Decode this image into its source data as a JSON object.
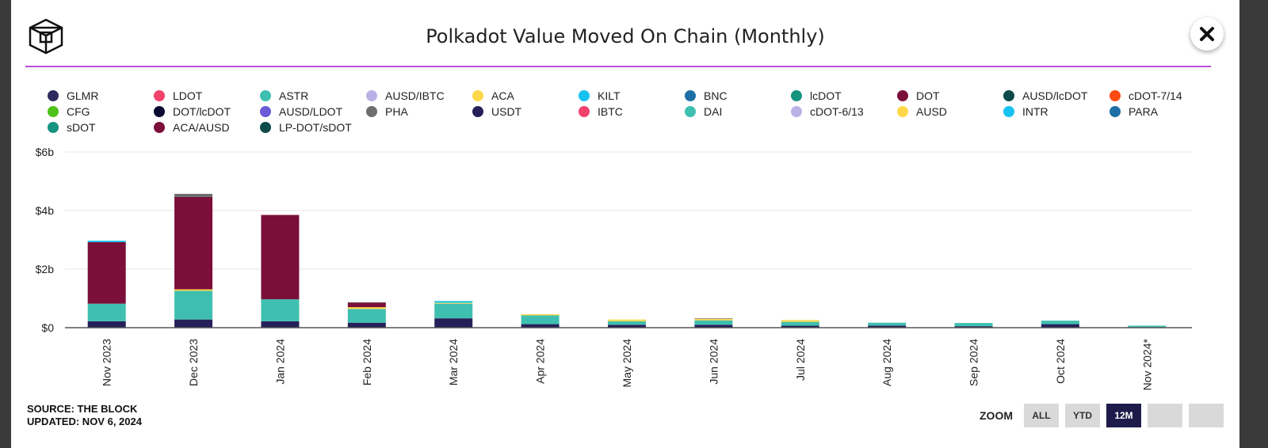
{
  "title": "Polkadot Value Moved On Chain (Monthly)",
  "source_line": "SOURCE: THE BLOCK",
  "updated_line": "UPDATED: NOV 6, 2024",
  "zoom": {
    "label": "ZOOM",
    "buttons": [
      {
        "label": "ALL",
        "active": false
      },
      {
        "label": "YTD",
        "active": false
      },
      {
        "label": "12M",
        "active": true
      },
      {
        "label": "",
        "active": false
      },
      {
        "label": "",
        "active": false
      }
    ]
  },
  "legend": [
    {
      "name": "GLMR",
      "color": "#2e2a5e"
    },
    {
      "name": "LDOT",
      "color": "#f0426a"
    },
    {
      "name": "ASTR",
      "color": "#3fbfb0"
    },
    {
      "name": "AUSD/IBTC",
      "color": "#b9b2e6"
    },
    {
      "name": "ACA",
      "color": "#ffd84a"
    },
    {
      "name": "KILT",
      "color": "#18c2f0"
    },
    {
      "name": "BNC",
      "color": "#1d6fa5"
    },
    {
      "name": "lcDOT",
      "color": "#17947f"
    },
    {
      "name": "DOT",
      "color": "#7b0f3a"
    },
    {
      "name": "AUSD/lcDOT",
      "color": "#0d4a4a"
    },
    {
      "name": "cDOT-7/14",
      "color": "#ff4a14"
    },
    {
      "name": "CFG",
      "color": "#4fc21a"
    },
    {
      "name": "DOT/lcDOT",
      "color": "#0a0a30"
    },
    {
      "name": "AUSD/LDOT",
      "color": "#6b5bd6"
    },
    {
      "name": "PHA",
      "color": "#6e6e6e"
    },
    {
      "name": "USDT",
      "color": "#26205a"
    },
    {
      "name": "IBTC",
      "color": "#f0426a"
    },
    {
      "name": "DAI",
      "color": "#3fbfb0"
    },
    {
      "name": "cDOT-6/13",
      "color": "#b9b2e6"
    },
    {
      "name": "AUSD",
      "color": "#ffd84a"
    },
    {
      "name": "INTR",
      "color": "#18c2f0"
    },
    {
      "name": "PARA",
      "color": "#1d6fa5"
    },
    {
      "name": "sDOT",
      "color": "#17947f"
    },
    {
      "name": "ACA/AUSD",
      "color": "#7b0f3a"
    },
    {
      "name": "LP-DOT/sDOT",
      "color": "#0d4a4a"
    }
  ],
  "chart_data": {
    "type": "bar",
    "stacked": true,
    "ylim": [
      0,
      6
    ],
    "yticks": [
      "$0",
      "$2b",
      "$4b",
      "$6b"
    ],
    "ytick_values": [
      0,
      2,
      4,
      6
    ],
    "unit": "billion USD",
    "grid": true,
    "categories": [
      "Nov 2023",
      "Dec 2023",
      "Jan 2024",
      "Feb 2024",
      "Mar 2024",
      "Apr 2024",
      "May 2024",
      "Jun 2024",
      "Jul 2024",
      "Aug 2024",
      "Sep 2024",
      "Oct 2024",
      "Nov 2024*"
    ],
    "series": [
      {
        "name": "USDT",
        "color": "#26205a",
        "values": [
          0.22,
          0.28,
          0.22,
          0.17,
          0.32,
          0.12,
          0.1,
          0.1,
          0.07,
          0.07,
          0.05,
          0.12,
          0.02
        ]
      },
      {
        "name": "DAI",
        "color": "#3fbfb0",
        "values": [
          0.6,
          0.98,
          0.75,
          0.47,
          0.5,
          0.3,
          0.12,
          0.15,
          0.13,
          0.1,
          0.11,
          0.12,
          0.05
        ]
      },
      {
        "name": "ACA",
        "color": "#ffd84a",
        "values": [
          0,
          0.05,
          0,
          0.06,
          0.03,
          0.04,
          0.06,
          0.05,
          0.06,
          0,
          0,
          0,
          0
        ]
      },
      {
        "name": "DOT",
        "color": "#7b0f3a",
        "values": [
          2.1,
          3.15,
          2.88,
          0.15,
          0,
          0,
          0,
          0,
          0,
          0,
          0,
          0,
          0
        ]
      },
      {
        "name": "PHA",
        "color": "#6e6e6e",
        "values": [
          0,
          0.11,
          0,
          0.02,
          0,
          0,
          0,
          0.02,
          0,
          0,
          0,
          0,
          0
        ]
      },
      {
        "name": "KILT",
        "color": "#18c2f0",
        "values": [
          0.05,
          0,
          0,
          0,
          0.06,
          0,
          0,
          0,
          0,
          0,
          0,
          0,
          0
        ]
      }
    ]
  }
}
